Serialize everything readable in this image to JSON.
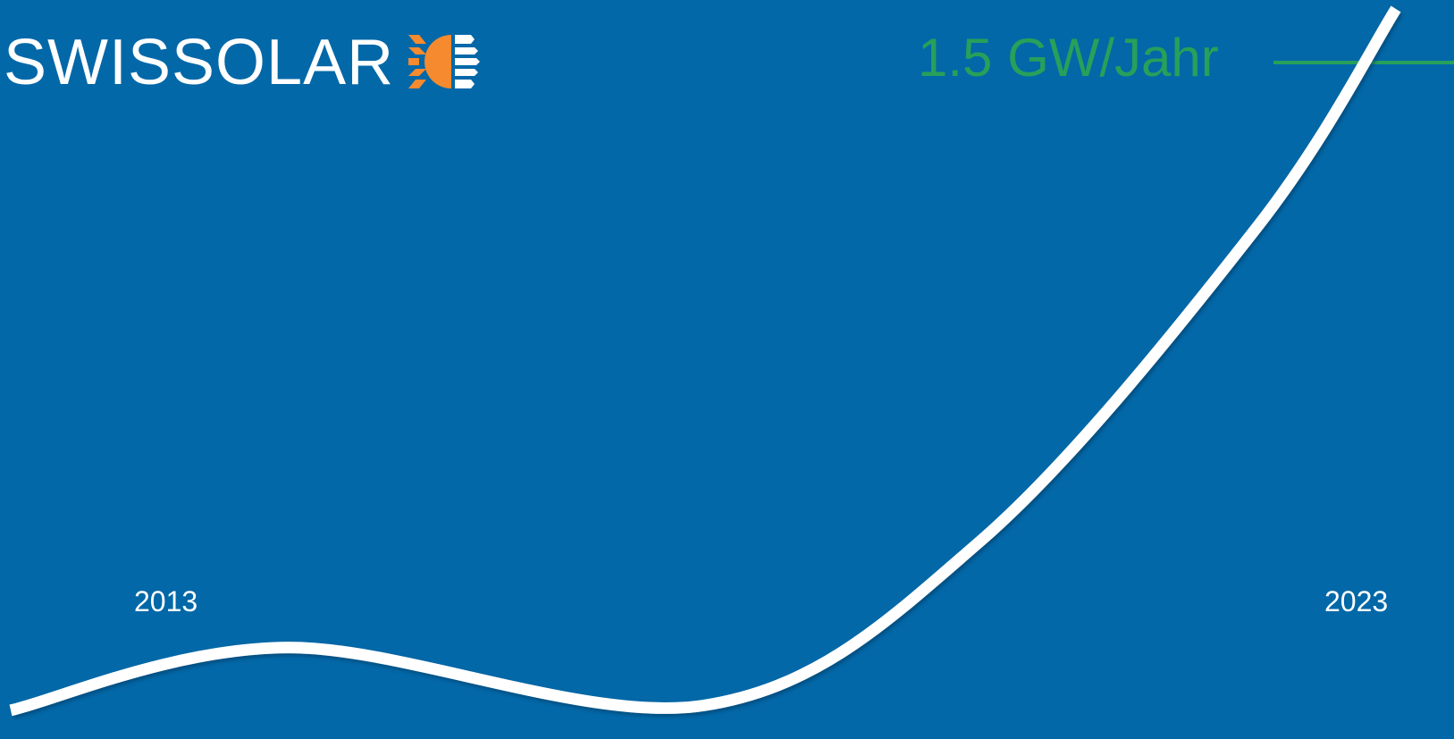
{
  "logo": {
    "text": "SWISSOLAR",
    "icon": "sun-panel-icon",
    "colors": {
      "sun": "#f58a2e",
      "rays": "#f58a2e",
      "bars": "#ffffff"
    }
  },
  "colors": {
    "background": "#0268a8",
    "curve": "#ffffff",
    "annotation": "#27a05a",
    "text": "#ffffff"
  },
  "chart_data": {
    "type": "line",
    "title": "",
    "xlabel": "",
    "ylabel": "",
    "x_ticks": [
      "2013",
      "2023"
    ],
    "x": [
      2013,
      2015,
      2018,
      2020,
      2022,
      2023
    ],
    "values": [
      0.05,
      0.18,
      0.06,
      0.4,
      1.05,
      1.5
    ],
    "xlim": [
      2013,
      2023
    ],
    "ylim": [
      0,
      1.5
    ],
    "reference_line": {
      "label": "1.5 GW/Jahr",
      "value": 1.5
    },
    "grid": false,
    "legend": "none"
  }
}
